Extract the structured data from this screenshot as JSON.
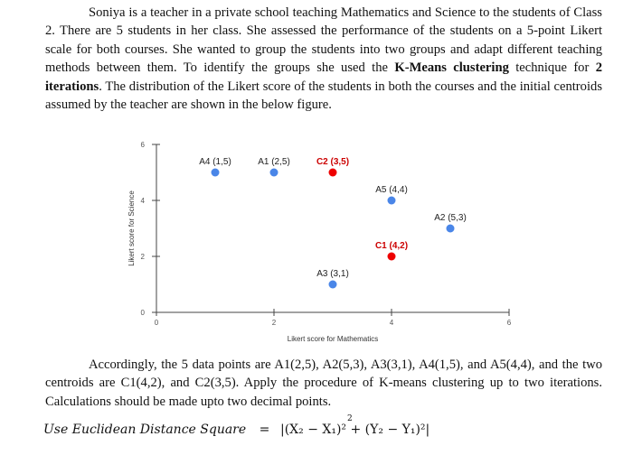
{
  "intro": {
    "text_before": "Soniya is a teacher in a private school teaching Mathematics and Science to the students of Class 2. There are 5 students in her class. She assessed the performance of the students on a 5-point Likert scale for both courses. She wanted to group the students into two groups and adapt different teaching methods between them. To identify the groups she used the ",
    "bold_method": "K-Means clustering",
    "text_middle": " technique for ",
    "bold_iterations": "2 iterations",
    "text_after": ". The distribution of the Likert score of the students in both the courses and the initial centroids assumed by the teacher are shown in the below figure."
  },
  "chart_data": {
    "type": "scatter",
    "xlabel": "Likert score for Mathematics",
    "ylabel": "Likert score for Science",
    "xlim": [
      0,
      6
    ],
    "ylim": [
      0,
      6
    ],
    "xticks": [
      "0",
      "2",
      "4",
      "6"
    ],
    "yticks": [
      "0",
      "2",
      "4",
      "6"
    ],
    "grid": false,
    "series": [
      {
        "color": "#4a86e8",
        "points": [
          {
            "label": "A1 (2,5)",
            "x": 2,
            "y": 5
          },
          {
            "label": "A2 (5,3)",
            "x": 5,
            "y": 3
          },
          {
            "label": "A3 (3,1)",
            "x": 3,
            "y": 1
          },
          {
            "label": "A4 (1,5)",
            "x": 1,
            "y": 5
          },
          {
            "label": "A5 (4,4)",
            "x": 4,
            "y": 4
          }
        ]
      },
      {
        "color": "#ee0000",
        "points": [
          {
            "label": "C1 (4,2)",
            "x": 4,
            "y": 2
          },
          {
            "label": "C2 (3,5)",
            "x": 3,
            "y": 5
          }
        ]
      }
    ]
  },
  "accordingly": "Accordingly, the 5 data points are A1(2,5), A2(5,3), A3(3,1), A4(1,5), and A5(4,4), and the two centroids are C1(4,2), and C2(3,5). Apply the procedure of K-means clustering up to two iterations. Calculations should be made upto two decimal points.",
  "formula": {
    "label": "Use Euclidean Distance Square",
    "equals": "=",
    "expression": "|(X₂ − X₁)² + (Y₂ − Y₁)²|",
    "superscript": "2"
  }
}
